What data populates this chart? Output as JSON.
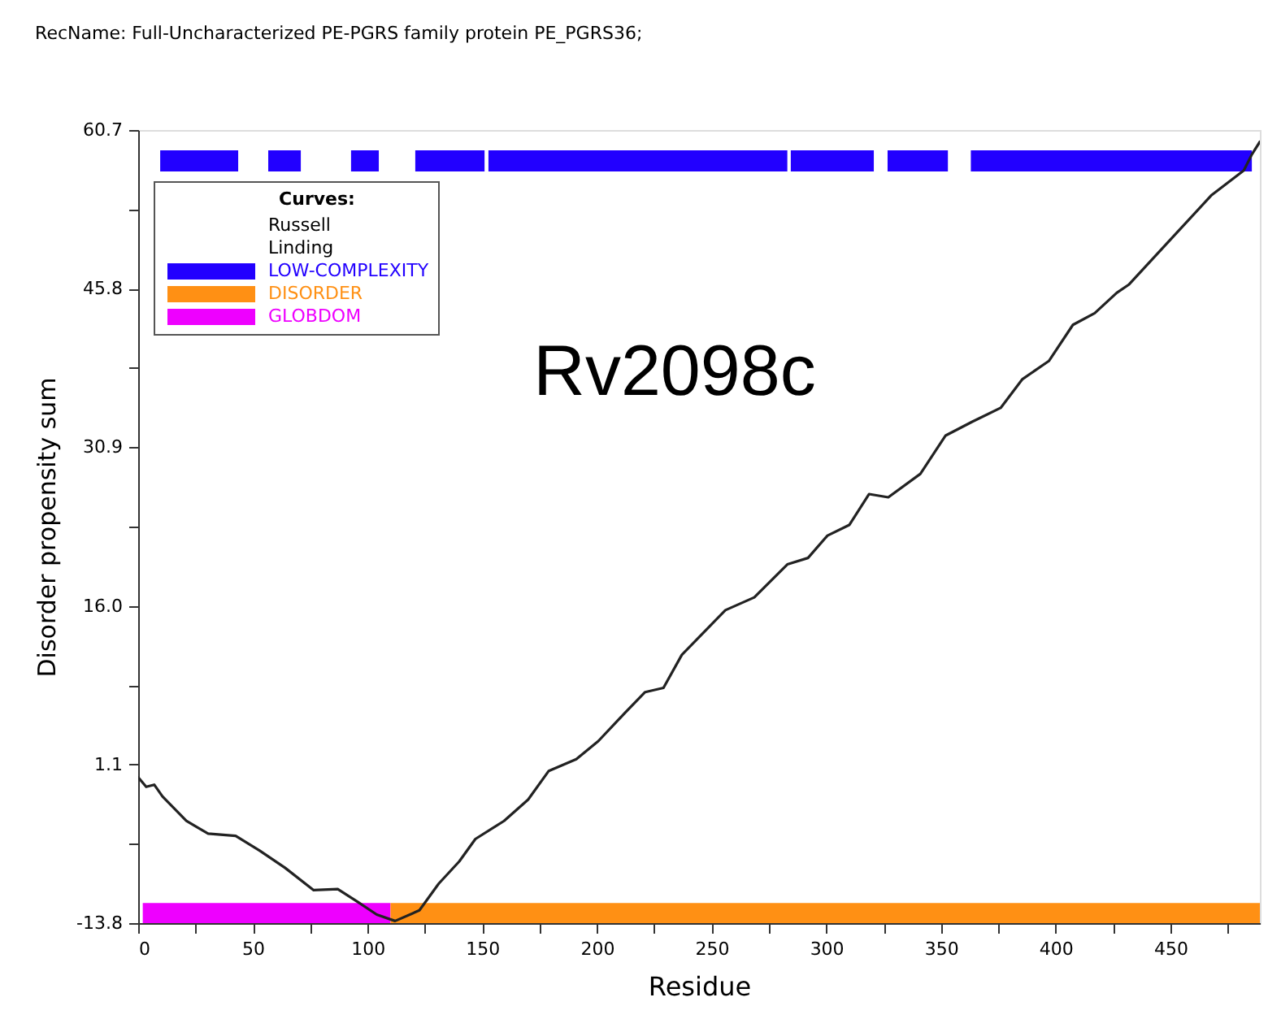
{
  "chart_data": {
    "type": "line",
    "title": "RecName: Full-Uncharacterized PE-PGRS family protein PE_PGRS36;",
    "xlabel": "Residue",
    "ylabel": "Disorder propensity sum",
    "legend_title": "Curves:",
    "legend": "top left",
    "annotations": [
      "Rv2098c",
      "Russell",
      "Linding"
    ],
    "xlim": [
      0,
      489
    ],
    "ylim": [
      -13.8,
      60.7
    ],
    "xticks": [
      0,
      {
        "value": 25,
        "label": null
      },
      50,
      {
        "value": 75,
        "label": null
      },
      100,
      {
        "value": 125,
        "label": null
      },
      150,
      {
        "value": 175,
        "label": null
      },
      200,
      {
        "value": 225,
        "label": null
      },
      250,
      {
        "value": 275,
        "label": null
      },
      300,
      {
        "value": 325,
        "label": null
      },
      350,
      {
        "value": 375,
        "label": null
      },
      400,
      {
        "value": 425,
        "label": null
      },
      450,
      {
        "value": 475,
        "label": null
      }
    ],
    "yticks": [
      -13.8,
      {
        "value": -6.35,
        "label": null
      },
      1.1,
      {
        "value": 8.55,
        "label": null
      },
      {
        "value": 16,
        "label": "16.0"
      },
      {
        "value": 23.45,
        "label": null
      },
      30.9,
      {
        "value": 38.35,
        "label": null
      },
      45.8,
      {
        "value": 53.25,
        "label": null
      },
      60.7
    ],
    "series": [
      {
        "color": "#222222",
        "x": [
          0,
          3.5,
          7,
          10.6,
          21,
          30.5,
          42.5,
          53,
          64,
          76.5,
          87,
          95.7,
          104,
          112,
          122.6,
          131,
          140,
          147,
          159.5,
          170,
          179,
          191,
          200.6,
          212,
          221,
          229,
          237,
          256,
          268.6,
          283,
          292,
          300.5,
          310,
          318.6,
          327,
          341,
          352,
          363.6,
          376,
          385.5,
          397,
          407.5,
          417,
          426.6,
          432,
          450,
          468,
          482,
          485.5,
          489
        ],
        "values": [
          -0.1,
          -1.0,
          -0.8,
          -1.9,
          -4.2,
          -5.4,
          -5.6,
          -7.0,
          -8.6,
          -10.7,
          -10.6,
          -11.8,
          -13.0,
          -13.6,
          -12.6,
          -10.1,
          -8.0,
          -5.9,
          -4.2,
          -2.2,
          0.5,
          1.6,
          3.3,
          5.9,
          7.9,
          8.3,
          11.4,
          15.6,
          16.8,
          19.9,
          20.5,
          22.6,
          23.6,
          26.5,
          26.2,
          28.4,
          32.0,
          33.3,
          34.6,
          37.3,
          39.0,
          42.4,
          43.5,
          45.4,
          46.2,
          50.4,
          54.6,
          56.9,
          58.4,
          59.6
        ]
      },
      {
        "name": "LOW-COMPLEXITY",
        "color": "#2200ff",
        "x": [
          9.6,
          43.6,
          50,
          56.7,
          70.9,
          80,
          92.8,
          104.9,
          112,
          120.8,
          151,
          152,
          152.7,
          283,
          284,
          284.5,
          320.7,
          323,
          326.7,
          353,
          358,
          363,
          485.5
        ],
        "values": [
          57.8,
          57.8,
          null,
          57.8,
          57.8,
          null,
          57.8,
          57.8,
          null,
          57.8,
          57.8,
          null,
          57.8,
          57.8,
          null,
          57.8,
          57.8,
          null,
          57.8,
          57.8,
          null,
          57.8,
          57.8
        ]
      },
      {
        "name": "DISORDER",
        "color": "#ff9014",
        "x": [
          110,
          489
        ],
        "values": [
          -12.9,
          -12.9
        ]
      },
      {
        "name": "GLOBDOM",
        "color": "#ee00ff",
        "x": [
          2,
          110
        ],
        "values": [
          -12.9,
          -12.9
        ]
      }
    ]
  }
}
